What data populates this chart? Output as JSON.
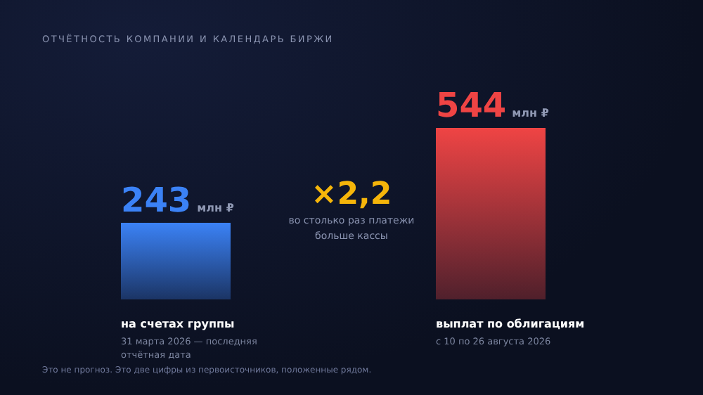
{
  "chart_data": {
    "type": "bar",
    "title": "ОТЧЁТНОСТЬ КОМПАНИИ И КАЛЕНДАРЬ БИРЖИ",
    "categories": [
      "на счетах группы",
      "выплат по облигациям"
    ],
    "values": [
      243,
      544
    ],
    "colors": [
      "#3b82f6",
      "#ef4444"
    ],
    "value_labels": [
      "243 млн ₽",
      "544 млн ₽"
    ],
    "annotations": [
      "×2,2",
      "во столько раз платежи больше кассы",
      "31 марта 2026 — последняя отчётная дата",
      "с 10 по 26 августа 2026",
      "Это не прогноз. Это две цифры из первоисточников, положенные рядом."
    ]
  }
}
